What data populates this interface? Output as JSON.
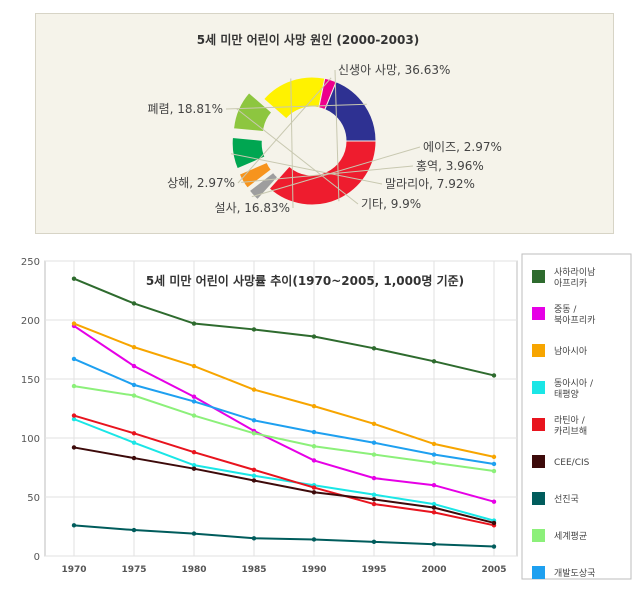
{
  "chart_data": [
    {
      "type": "pie",
      "title": "5세 미만 어린이 사망 원인 (2000-2003)",
      "slices": [
        {
          "label": "신생아 사망, 36.63%",
          "value": 36.63,
          "color": "#ee1c2e",
          "exploded": false
        },
        {
          "label": "에이즈, 2.97%",
          "value": 2.97,
          "color": "#9e9e9e",
          "exploded": true
        },
        {
          "label": "홍역, 3.96%",
          "value": 3.96,
          "color": "#f7941d",
          "exploded": true
        },
        {
          "label": "말라리아, 7.92%",
          "value": 7.92,
          "color": "#00a651",
          "exploded": true
        },
        {
          "label": "기타, 9.9%",
          "value": 9.9,
          "color": "#8dc63f",
          "exploded": true
        },
        {
          "label": "설사, 16.83%",
          "value": 16.83,
          "color": "#fff200",
          "exploded": false
        },
        {
          "label": "상해, 2.97%",
          "value": 2.97,
          "color": "#ec008c",
          "exploded": false
        },
        {
          "label": "폐렴, 18.81%",
          "value": 18.81,
          "color": "#2e3192",
          "exploded": false
        }
      ]
    },
    {
      "type": "line",
      "title": "5세 미만 어린이 사망률 추이(1970~2005, 1,000명 기준)",
      "x": [
        1970,
        1975,
        1980,
        1985,
        1990,
        1995,
        2000,
        2005
      ],
      "yticks": [
        0,
        50,
        100,
        150,
        200,
        250
      ],
      "ylim": [
        0,
        250
      ],
      "grid": true,
      "legend_position": "right",
      "series": [
        {
          "name": "사하라이남 아프리카",
          "color": "#2e6b2e",
          "values": [
            235,
            214,
            197,
            192,
            186,
            176,
            165,
            153
          ]
        },
        {
          "name": "중동 / 북아프리카",
          "color": "#e600e6",
          "values": [
            195,
            161,
            135,
            106,
            81,
            66,
            60,
            46
          ]
        },
        {
          "name": "남아시아",
          "color": "#f7a500",
          "values": [
            197,
            177,
            161,
            141,
            127,
            112,
            95,
            84
          ]
        },
        {
          "name": "동아시아 / 태평양",
          "color": "#1ae6e6",
          "values": [
            116,
            96,
            77,
            68,
            60,
            52,
            44,
            30
          ]
        },
        {
          "name": "라틴아 / 카리브해",
          "color": "#e8141e",
          "values": [
            119,
            104,
            88,
            73,
            58,
            44,
            37,
            26
          ]
        },
        {
          "name": "CEE/CIS",
          "color": "#3d0a0a",
          "values": [
            92,
            83,
            74,
            64,
            54,
            48,
            41,
            28
          ]
        },
        {
          "name": "선진국",
          "color": "#005c5c",
          "values": [
            26,
            22,
            19,
            15,
            14,
            12,
            10,
            8
          ]
        },
        {
          "name": "세계평균",
          "color": "#8cf07a",
          "values": [
            144,
            136,
            119,
            104,
            93,
            86,
            79,
            72
          ]
        },
        {
          "name": "개발도상국",
          "color": "#1ea0f0",
          "values": [
            167,
            145,
            131,
            115,
            105,
            96,
            86,
            78
          ]
        }
      ]
    }
  ]
}
